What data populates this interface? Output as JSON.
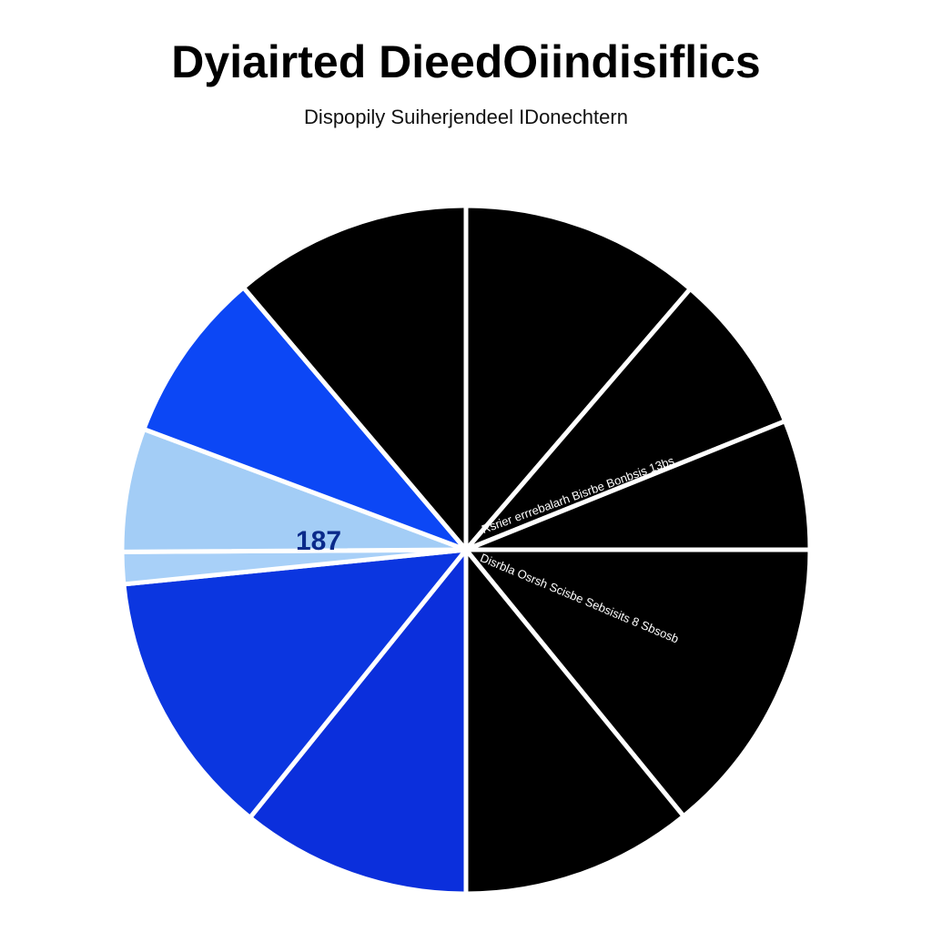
{
  "chart_data": {
    "type": "pie",
    "title": "Dyiairted DieedOiindisiflics",
    "subtitle": "Dispopily Suiherjendeel IDonechtern",
    "categories": [
      null,
      null,
      null,
      null,
      null,
      null,
      null,
      null,
      null,
      null,
      null
    ],
    "values": [
      11.3,
      7.6,
      6.1,
      14.1,
      10.9,
      10.8,
      12.6,
      1.5,
      5.8,
      8.1,
      11.2
    ],
    "colors": [
      "#000000",
      "#000000",
      "#000000",
      "#000000",
      "#000000",
      "#0b2fdc",
      "#0b36e0",
      "#a8d0f8",
      "#a3cdf6",
      "#0c47f5",
      "#000000"
    ],
    "annotations": [
      "187",
      "Rsrier errrebalarh Bisrbe Bonbsis 13bs",
      "Disrbla Osrsh Scisbe  Sebsisits 8 Sbsosb"
    ]
  }
}
